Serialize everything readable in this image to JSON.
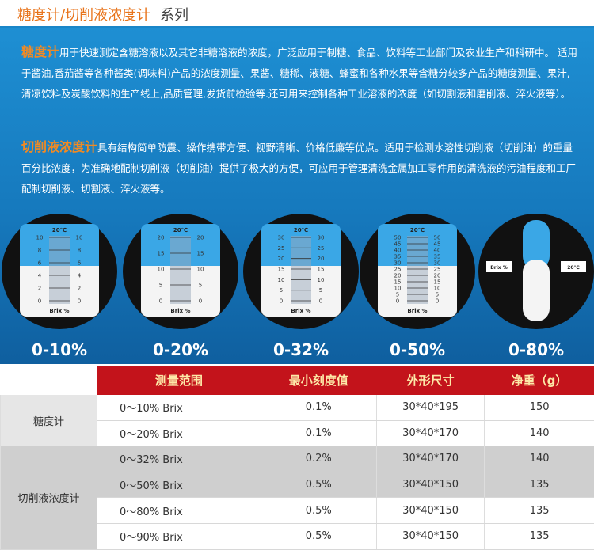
{
  "header": {
    "title_main": "糖度计/切削液浓度计",
    "title_suffix": "系列"
  },
  "intro": [
    {
      "lead": "糖度计",
      "text": "用于快速测定含糖溶液以及其它非糖溶液的浓度，广泛应用于制糖、食品、饮料等工业部门及农业生产和科研中。 适用于酱油,番茄酱等各种酱类(调味料)产品的浓度测量、果酱、糖稀、液糖、蜂蜜和各种水果等含糖分较多产品的糖度测量、果汁,清凉饮料及炭酸饮料的生产线上,品质管理,发货前检验等.还可用来控制各种工业溶液的浓度（如切割液和磨削液、淬火液等）。"
    },
    {
      "lead": "切削液浓度计",
      "text": "具有结构简单防震、操作携带方便、视野清晰、价格低廉等优点。适用于检测水溶性切削液（切削油）的重量百分比浓度，为准确地配制切削液（切削油）提供了极大的方便，可应用于管理清洗金属加工零件用的清洗液的污油程度和工厂配制切削液、切割液、淬火液等。"
    }
  ],
  "gauges": [
    {
      "label": "0-10%",
      "temp": "20℃",
      "unit": "Brix %",
      "ticks": [
        0,
        2,
        4,
        6,
        8,
        10
      ]
    },
    {
      "label": "0-20%",
      "temp": "20℃",
      "unit": "Brix %",
      "ticks": [
        0,
        5,
        10,
        15,
        20
      ]
    },
    {
      "label": "0-32%",
      "temp": "20℃",
      "unit": "Brix %",
      "ticks": [
        0,
        5,
        10,
        15,
        20,
        25,
        30
      ]
    },
    {
      "label": "0-50%",
      "temp": "20℃",
      "unit": "Brix %",
      "ticks": [
        0,
        5,
        10,
        15,
        20,
        25,
        30,
        35,
        40,
        45,
        50
      ]
    },
    {
      "label": "0-80%",
      "temp": "20℃",
      "unit": "Brix %",
      "ticks": []
    }
  ],
  "table": {
    "headers": [
      "测量范围",
      "最小刻度值",
      "外形尺寸",
      "净重（g）"
    ],
    "groups": [
      {
        "label": "糖度计",
        "rows": [
          [
            "0～10% Brix",
            "0.1%",
            "30*40*195",
            "150"
          ],
          [
            "0～20% Brix",
            "0.1%",
            "30*40*170",
            "140"
          ]
        ]
      },
      {
        "label": "切削液浓度计",
        "rows": [
          [
            "0～32% Brix",
            "0.2%",
            "30*40*170",
            "140"
          ],
          [
            "0～50% Brix",
            "0.5%",
            "30*40*150",
            "135"
          ],
          [
            "0～80% Brix",
            "0.5%",
            "30*40*150",
            "135"
          ],
          [
            "0～90% Brix",
            "0.5%",
            "30*40*150",
            "135"
          ]
        ]
      }
    ]
  }
}
